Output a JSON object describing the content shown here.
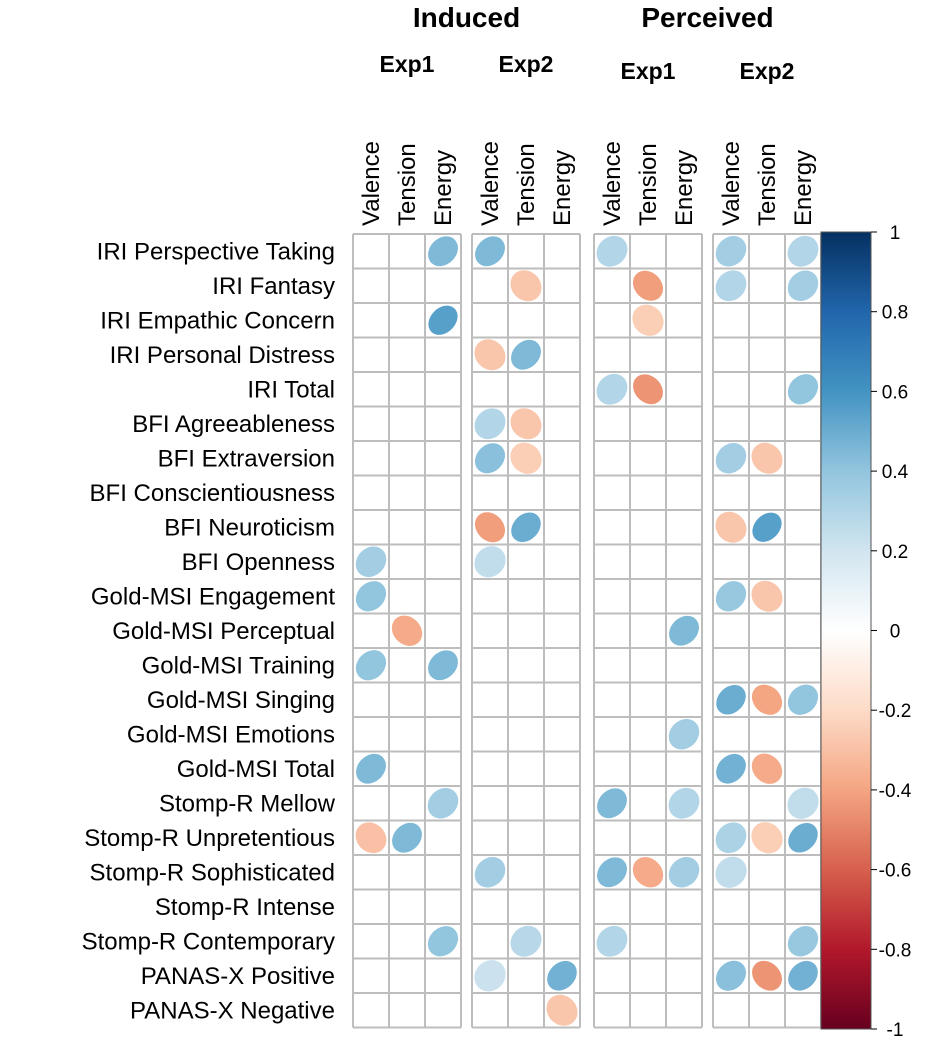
{
  "chart_data": {
    "type": "heatmap",
    "title": "",
    "groups": [
      {
        "name": "Induced",
        "experiments": [
          "Exp1",
          "Exp2"
        ]
      },
      {
        "name": "Perceived",
        "experiments": [
          "Exp1",
          "Exp2"
        ]
      }
    ],
    "columns": [
      "Valence",
      "Tension",
      "Energy"
    ],
    "rows": [
      "IRI Perspective Taking",
      "IRI Fantasy",
      "IRI Empathic Concern",
      "IRI Personal Distress",
      "IRI Total",
      "BFI Agreeableness",
      "BFI Extraversion",
      "BFI Conscientiousness",
      "BFI Neuroticism",
      "BFI Openness",
      "Gold-MSI Engagement",
      "Gold-MSI Perceptual",
      "Gold-MSI Training",
      "Gold-MSI Singing",
      "Gold-MSI Emotions",
      "Gold-MSI Total",
      "Stomp-R Mellow",
      "Stomp-R Unpretentious",
      "Stomp-R Sophisticated",
      "Stomp-R Intense",
      "Stomp-R Contemporary",
      "PANAS-X Positive",
      "PANAS-X Negative"
    ],
    "panels": [
      {
        "group": "Induced",
        "experiment": "Exp1",
        "values": [
          [
            null,
            null,
            0.45
          ],
          [
            null,
            null,
            null
          ],
          [
            null,
            null,
            0.55
          ],
          [
            null,
            null,
            null
          ],
          [
            null,
            null,
            null
          ],
          [
            null,
            null,
            null
          ],
          [
            null,
            null,
            null
          ],
          [
            null,
            null,
            null
          ],
          [
            null,
            null,
            null
          ],
          [
            0.35,
            null,
            null
          ],
          [
            0.4,
            null,
            null
          ],
          [
            null,
            -0.38,
            null
          ],
          [
            0.4,
            null,
            0.45
          ],
          [
            null,
            null,
            null
          ],
          [
            null,
            null,
            null
          ],
          [
            0.45,
            null,
            null
          ],
          [
            null,
            null,
            0.35
          ],
          [
            -0.3,
            0.45,
            null
          ],
          [
            null,
            null,
            null
          ],
          [
            null,
            null,
            null
          ],
          [
            null,
            null,
            0.4
          ],
          [
            null,
            null,
            null
          ],
          [
            null,
            null,
            null
          ]
        ]
      },
      {
        "group": "Induced",
        "experiment": "Exp2",
        "values": [
          [
            0.45,
            null,
            null
          ],
          [
            null,
            -0.28,
            null
          ],
          [
            null,
            null,
            null
          ],
          [
            -0.28,
            0.45,
            null
          ],
          [
            null,
            null,
            null
          ],
          [
            0.3,
            -0.28,
            null
          ],
          [
            0.42,
            -0.25,
            null
          ],
          [
            null,
            null,
            null
          ],
          [
            -0.42,
            0.5,
            null
          ],
          [
            0.25,
            null,
            null
          ],
          [
            null,
            null,
            null
          ],
          [
            null,
            null,
            null
          ],
          [
            null,
            null,
            null
          ],
          [
            null,
            null,
            null
          ],
          [
            null,
            null,
            null
          ],
          [
            null,
            null,
            null
          ],
          [
            null,
            null,
            null
          ],
          [
            null,
            null,
            null
          ],
          [
            0.35,
            null,
            null
          ],
          [
            null,
            null,
            null
          ],
          [
            null,
            0.28,
            null
          ],
          [
            0.22,
            null,
            0.48
          ],
          [
            null,
            null,
            -0.28
          ]
        ]
      },
      {
        "group": "Perceived",
        "experiment": "Exp1",
        "values": [
          [
            0.3,
            null,
            null
          ],
          [
            null,
            -0.42,
            null
          ],
          [
            null,
            -0.25,
            null
          ],
          [
            null,
            null,
            null
          ],
          [
            0.3,
            -0.45,
            null
          ],
          [
            null,
            null,
            null
          ],
          [
            null,
            null,
            null
          ],
          [
            null,
            null,
            null
          ],
          [
            null,
            null,
            null
          ],
          [
            null,
            null,
            null
          ],
          [
            null,
            null,
            null
          ],
          [
            null,
            null,
            0.45
          ],
          [
            null,
            null,
            null
          ],
          [
            null,
            null,
            null
          ],
          [
            null,
            null,
            0.35
          ],
          [
            null,
            null,
            null
          ],
          [
            0.45,
            null,
            0.3
          ],
          [
            null,
            null,
            null
          ],
          [
            0.45,
            -0.38,
            0.35
          ],
          [
            null,
            null,
            null
          ],
          [
            0.3,
            null,
            null
          ],
          [
            null,
            null,
            null
          ],
          [
            null,
            null,
            null
          ]
        ]
      },
      {
        "group": "Perceived",
        "experiment": "Exp2",
        "values": [
          [
            0.35,
            null,
            0.3
          ],
          [
            0.3,
            null,
            0.35
          ],
          [
            null,
            null,
            null
          ],
          [
            null,
            null,
            null
          ],
          [
            null,
            null,
            0.4
          ],
          [
            null,
            null,
            null
          ],
          [
            0.35,
            -0.28,
            null
          ],
          [
            null,
            null,
            null
          ],
          [
            -0.28,
            0.55,
            null
          ],
          [
            null,
            null,
            null
          ],
          [
            0.38,
            -0.28,
            null
          ],
          [
            null,
            null,
            null
          ],
          [
            null,
            null,
            null
          ],
          [
            0.5,
            -0.4,
            0.4
          ],
          [
            null,
            null,
            null
          ],
          [
            0.48,
            -0.38,
            null
          ],
          [
            null,
            null,
            0.25
          ],
          [
            0.32,
            -0.25,
            0.5
          ],
          [
            0.25,
            null,
            null
          ],
          [
            null,
            null,
            null
          ],
          [
            null,
            null,
            0.38
          ],
          [
            0.42,
            -0.45,
            0.48
          ],
          [
            null,
            null,
            null
          ]
        ]
      }
    ],
    "colorbar": {
      "range": [
        -1,
        1
      ],
      "ticks": [
        "1",
        "0.8",
        "0.6",
        "0.4",
        "0.2",
        "0",
        "-0.2",
        "-0.4",
        "-0.6",
        "-0.8",
        "-1"
      ],
      "colors": [
        "#67001F",
        "#B2182B",
        "#D6604D",
        "#F4A582",
        "#FDDBC7",
        "#FFFFFF",
        "#D1E5F0",
        "#92C5DE",
        "#4393C3",
        "#2166AC",
        "#053061"
      ]
    },
    "grid_color": "#BDBDBD"
  }
}
